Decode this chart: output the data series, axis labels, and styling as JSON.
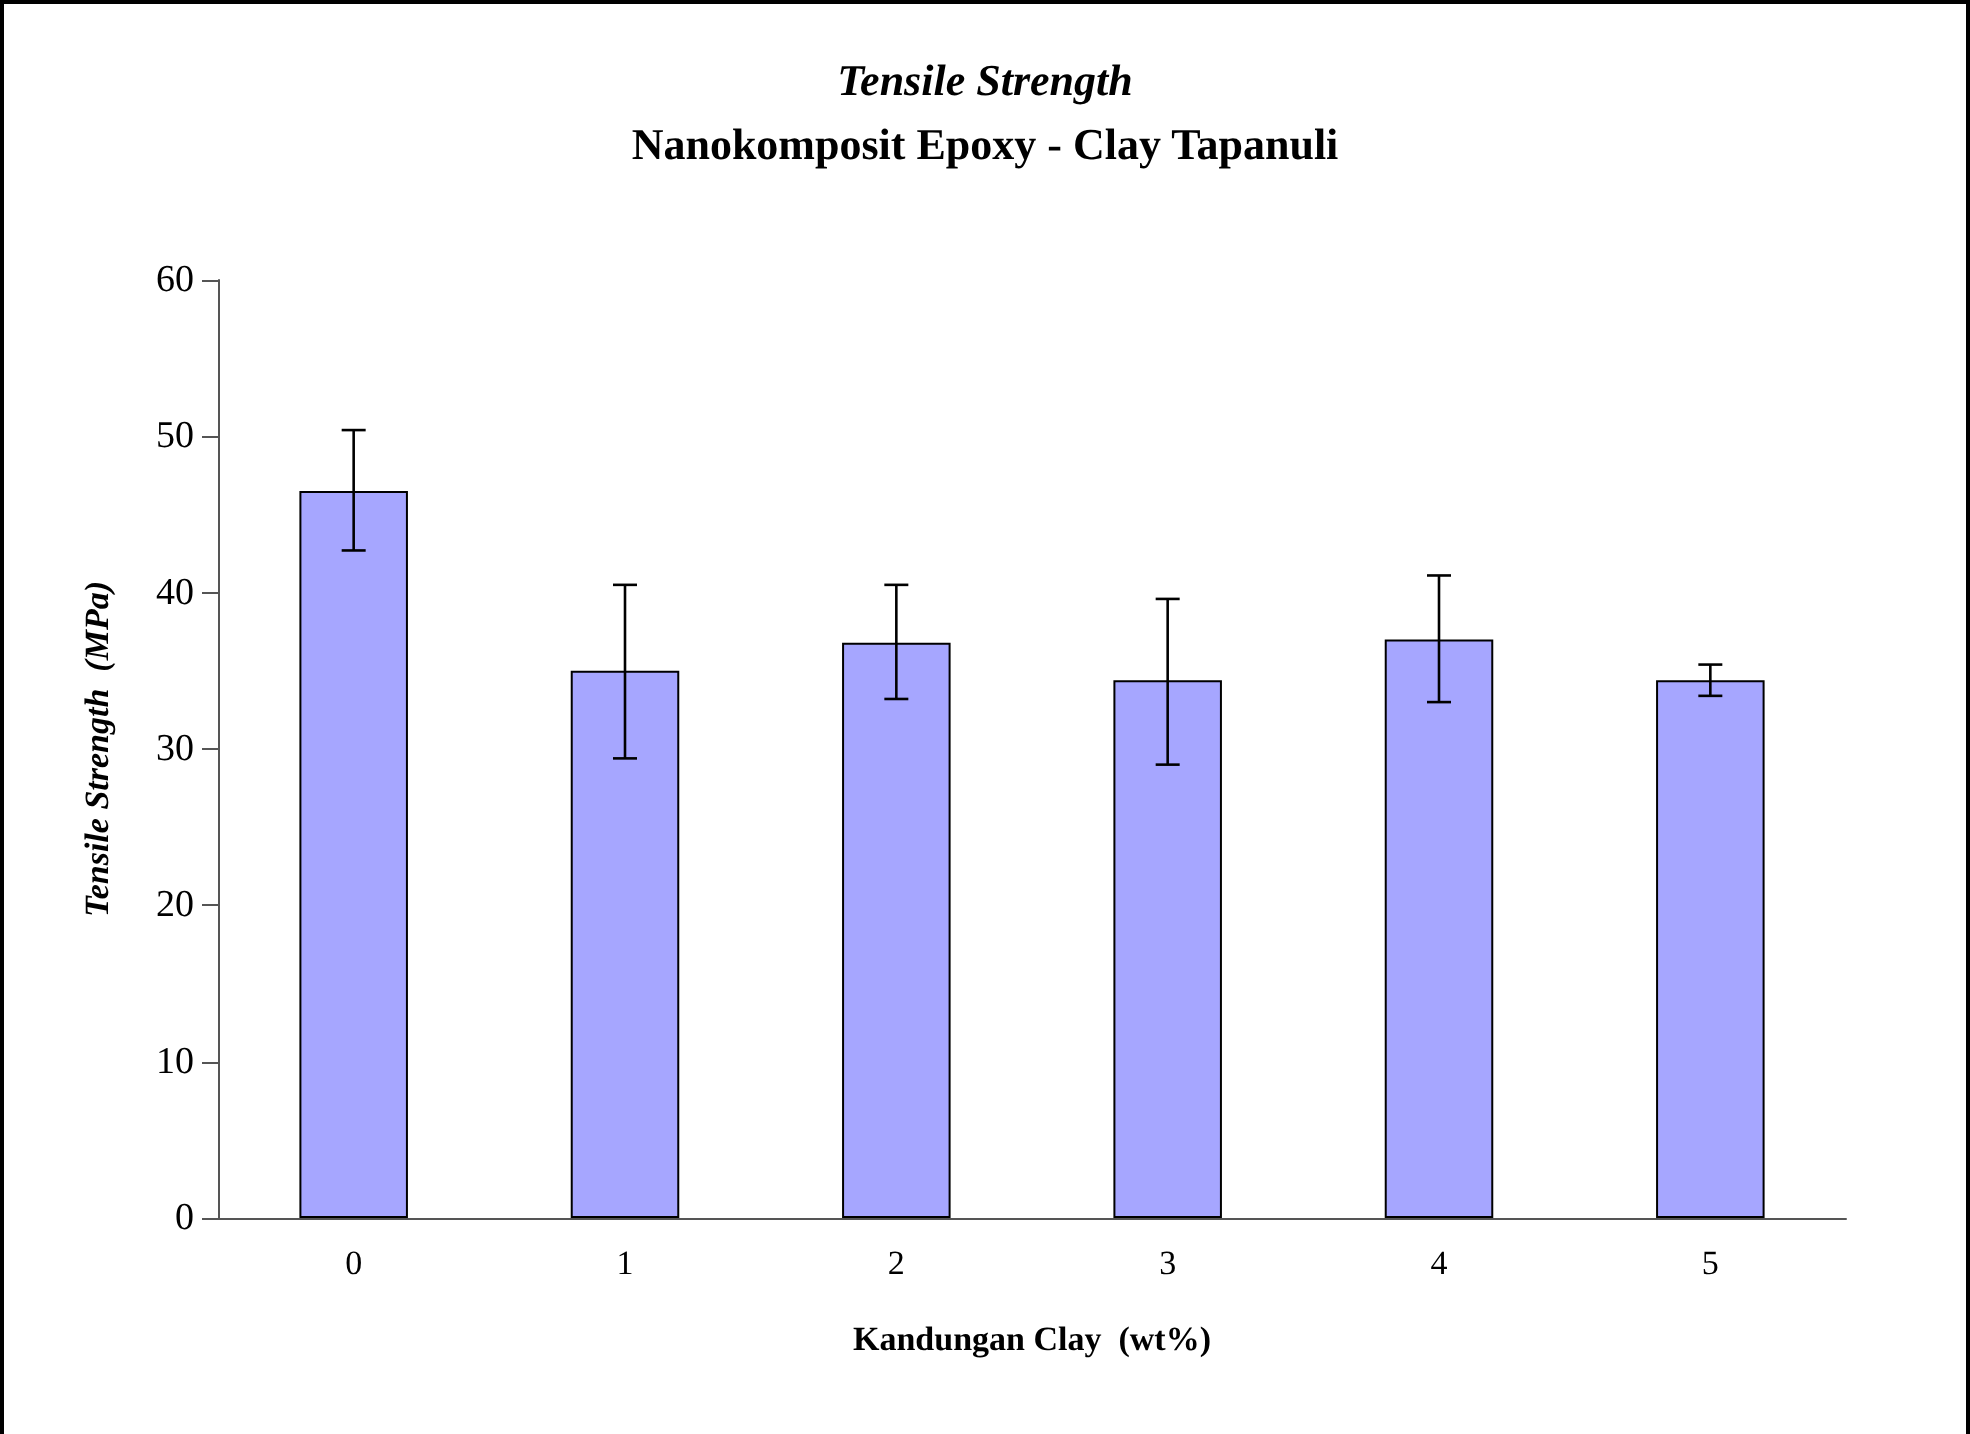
{
  "chart_data": {
    "type": "bar",
    "title": "Tensile Strength",
    "subtitle": "Nanokomposit Epoxy - Clay Tapanuli",
    "xlabel": "Kandungan Clay  (wt%)",
    "ylabel": "Tensile Strength  (MPa)",
    "categories": [
      "0",
      "1",
      "2",
      "3",
      "4",
      "5"
    ],
    "values": [
      46.5,
      35.0,
      36.8,
      34.4,
      37.0,
      34.4
    ],
    "color": "#a6a6ff",
    "errors": [
      [
        42.7,
        50.4
      ],
      [
        29.4,
        40.5
      ],
      [
        33.2,
        40.5
      ],
      [
        29.0,
        39.6
      ],
      [
        33.0,
        41.1
      ],
      [
        33.4,
        35.4
      ]
    ],
    "ylim": [
      0,
      60
    ],
    "yticks": [
      0,
      10,
      20,
      30,
      40,
      50,
      60
    ]
  }
}
